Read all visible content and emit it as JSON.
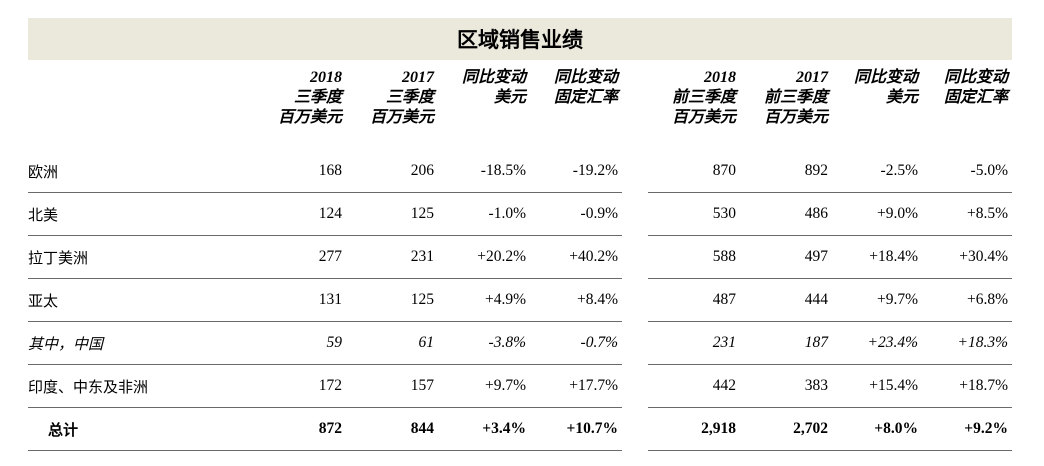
{
  "title": "区域销售业绩",
  "headers": [
    [
      "2018",
      "三季度",
      "百万美元"
    ],
    [
      "2017",
      "三季度",
      "百万美元"
    ],
    [
      "同比变动",
      "美元"
    ],
    [
      "同比变动",
      "固定汇率"
    ],
    [
      "2018",
      "前三季度",
      "百万美元"
    ],
    [
      "2017",
      "前三季度",
      "百万美元"
    ],
    [
      "同比变动",
      "美元"
    ],
    [
      "同比变动",
      "固定汇率"
    ]
  ],
  "rows": [
    {
      "name": "欧洲",
      "values": [
        "168",
        "206",
        "-18.5%",
        "-19.2%",
        "870",
        "892",
        "-2.5%",
        "-5.0%"
      ]
    },
    {
      "name": "北美",
      "values": [
        "124",
        "125",
        "-1.0%",
        "-0.9%",
        "530",
        "486",
        "+9.0%",
        "+8.5%"
      ]
    },
    {
      "name": "拉丁美洲",
      "values": [
        "277",
        "231",
        "+20.2%",
        "+40.2%",
        "588",
        "497",
        "+18.4%",
        "+30.4%"
      ]
    },
    {
      "name": "亚太",
      "values": [
        "131",
        "125",
        "+4.9%",
        "+8.4%",
        "487",
        "444",
        "+9.7%",
        "+6.8%"
      ]
    },
    {
      "name": "其中，中国",
      "values": [
        "59",
        "61",
        "-3.8%",
        "-0.7%",
        "231",
        "187",
        "+23.4%",
        "+18.3%"
      ]
    },
    {
      "name": "印度、中东及非洲",
      "values": [
        "172",
        "157",
        "+9.7%",
        "+17.7%",
        "442",
        "383",
        "+15.4%",
        "+18.7%"
      ]
    },
    {
      "name": "总计",
      "values": [
        "872",
        "844",
        "+3.4%",
        "+10.7%",
        "2,918",
        "2,702",
        "+8.0%",
        "+9.2%"
      ]
    }
  ]
}
